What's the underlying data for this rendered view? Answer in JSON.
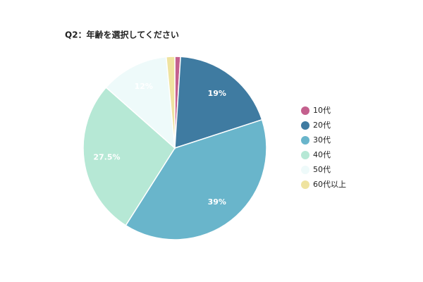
{
  "chart_data": {
    "type": "pie",
    "title": "Q2：年齢を選択してください",
    "categories": [
      "10代",
      "20代",
      "30代",
      "40代",
      "50代",
      "60代以上"
    ],
    "values": [
      1,
      19,
      39,
      27.5,
      12,
      1.5
    ],
    "value_labels": [
      null,
      "19%",
      "39%",
      "27.5%",
      "12%",
      null
    ],
    "colors": [
      "#c4608e",
      "#3f7ba1",
      "#69b5cb",
      "#b6e8d5",
      "#eefafa",
      "#efe3a0"
    ],
    "legend": "right"
  }
}
